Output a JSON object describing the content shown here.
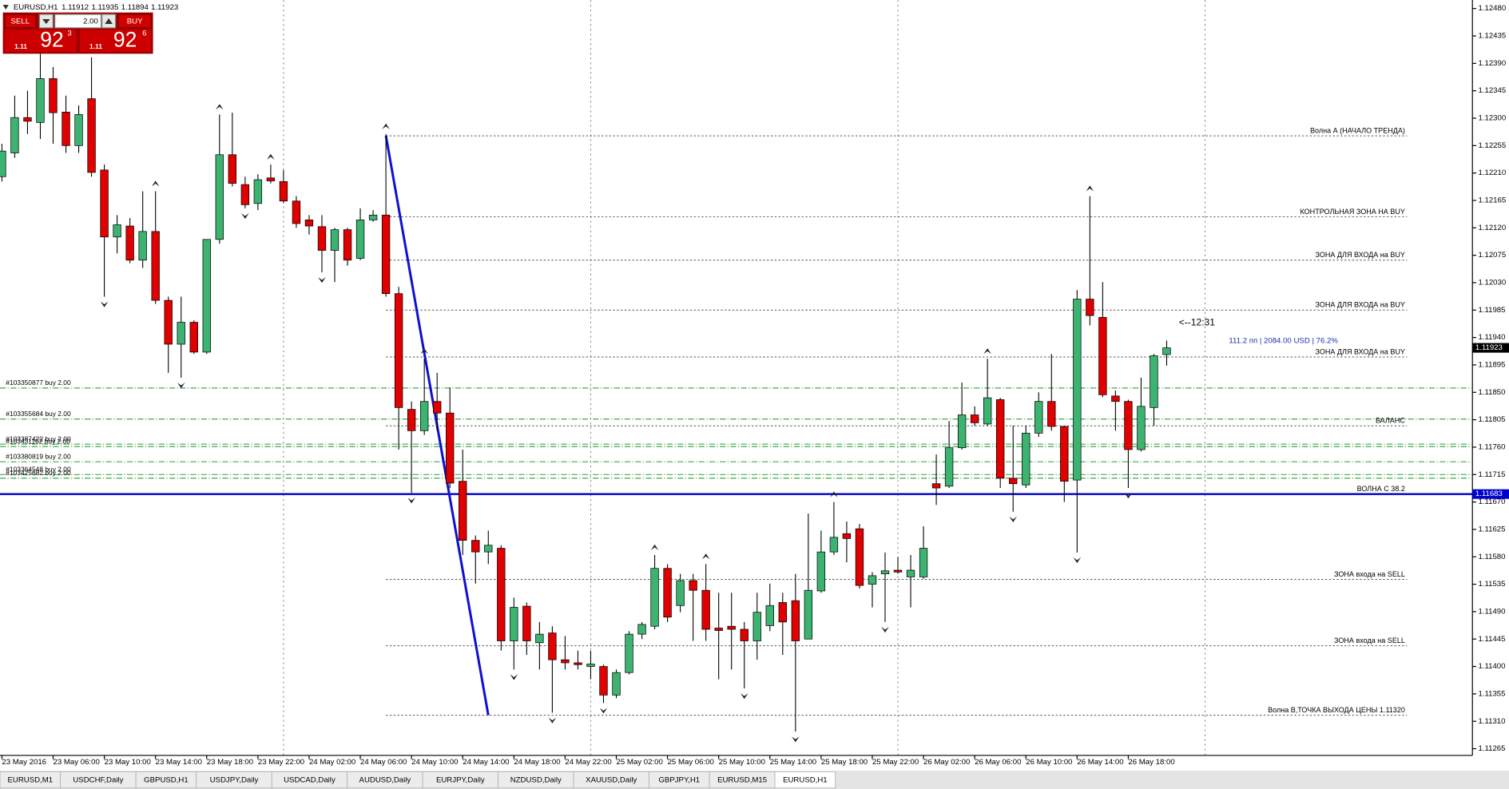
{
  "header": {
    "symbol": "EURUSD,H1"
  },
  "trade_panel": {
    "sell": "SELL",
    "buy": "BUY",
    "lot": "2.00",
    "sell_big": "1.11",
    "sell_pips": "92",
    "sell_point": "3",
    "buy_big": "1.11",
    "buy_pips": "92",
    "buy_point": "6"
  },
  "chart_data": {
    "type": "candlestick",
    "categories": [
      "23 May 2016",
      null,
      null,
      null,
      "23 May 06:00",
      null,
      null,
      null,
      "23 May 10:00",
      null,
      null,
      null,
      "23 May 14:00",
      null,
      null,
      null,
      "23 May 18:00",
      null,
      null,
      null,
      "23 May 22:00",
      null,
      null,
      null,
      "24 May 02:00",
      null,
      null,
      null,
      "24 May 06:00",
      null,
      null,
      null,
      "24 May 10:00",
      null,
      null,
      null,
      "24 May 14:00",
      null,
      null,
      null,
      "24 May 18:00",
      null,
      null,
      null,
      "24 May 22:00",
      null,
      null,
      null,
      "25 May 02:00",
      null,
      null,
      null,
      "25 May 06:00",
      null,
      null,
      null,
      "25 May 10:00",
      null,
      null,
      null,
      "25 May 14:00",
      null,
      null,
      null,
      "25 May 18:00",
      null,
      null,
      null,
      "25 May 22:00",
      null,
      null,
      null,
      "26 May 02:00",
      null,
      null,
      null,
      "26 May 06:00",
      null,
      null,
      null,
      "26 May 10:00",
      null,
      null,
      null,
      "26 May 14:00",
      null,
      null,
      null,
      "26 May 18:00",
      null,
      null,
      null
    ],
    "candles": [
      [
        1.12204,
        1.12258,
        1.12196,
        1.12246
      ],
      [
        1.12243,
        1.12337,
        1.12235,
        1.12301
      ],
      [
        1.12301,
        1.12345,
        1.12274,
        1.12295
      ],
      [
        1.12293,
        1.12408,
        1.12266,
        1.12365
      ],
      [
        1.12365,
        1.12384,
        1.12258,
        1.12309
      ],
      [
        1.1231,
        1.12337,
        1.12243,
        1.12255
      ],
      [
        1.12255,
        1.12321,
        1.12243,
        1.12306
      ],
      [
        1.12332,
        1.124,
        1.12204,
        1.12211
      ],
      [
        1.12215,
        1.12224,
        1.12007,
        1.12105
      ],
      [
        1.12105,
        1.12141,
        1.12078,
        1.12125
      ],
      [
        1.12123,
        1.12136,
        1.12062,
        1.12067
      ],
      [
        1.12067,
        1.1218,
        1.12054,
        1.12114
      ],
      [
        1.12114,
        1.1218,
        1.11995,
        1.12001
      ],
      [
        1.12001,
        1.12007,
        1.11882,
        1.11929
      ],
      [
        1.11929,
        1.12007,
        1.11874,
        1.11965
      ],
      [
        1.11965,
        1.11968,
        1.11913,
        1.11916
      ],
      [
        1.11916,
        1.12101,
        1.11913,
        1.12101
      ],
      [
        1.12101,
        1.12306,
        1.12094,
        1.1224
      ],
      [
        1.1224,
        1.12309,
        1.12188,
        1.12193
      ],
      [
        1.12191,
        1.12204,
        1.12152,
        1.12158
      ],
      [
        1.1216,
        1.12208,
        1.12149,
        1.12199
      ],
      [
        1.12202,
        1.12224,
        1.12193,
        1.12197
      ],
      [
        1.12196,
        1.12215,
        1.12161,
        1.12164
      ],
      [
        1.12164,
        1.12172,
        1.1212,
        1.12127
      ],
      [
        1.12133,
        1.12141,
        1.12109,
        1.12123
      ],
      [
        1.12122,
        1.12141,
        1.12047,
        1.12083
      ],
      [
        1.12083,
        1.1212,
        1.12031,
        1.12117
      ],
      [
        1.12117,
        1.1212,
        1.12058,
        1.12067
      ],
      [
        1.1207,
        1.12152,
        1.12067,
        1.12133
      ],
      [
        1.12133,
        1.12149,
        1.1213,
        1.12141
      ],
      [
        1.12141,
        1.12274,
        1.12007,
        1.12012
      ],
      [
        1.12012,
        1.12023,
        1.11756,
        1.11825
      ],
      [
        1.11822,
        1.11835,
        1.11685,
        1.11787
      ],
      [
        1.11787,
        1.11905,
        1.1178,
        1.11835
      ],
      [
        1.11835,
        1.11882,
        1.11787,
        1.11816
      ],
      [
        1.11816,
        1.11858,
        1.11693,
        1.11701
      ],
      [
        1.11704,
        1.11756,
        1.11583,
        1.11607
      ],
      [
        1.11607,
        1.11615,
        1.11536,
        1.11588
      ],
      [
        1.11588,
        1.11623,
        1.11568,
        1.11599
      ],
      [
        1.11594,
        1.11599,
        1.11426,
        1.11442
      ],
      [
        1.11442,
        1.11513,
        1.11395,
        1.11497
      ],
      [
        1.11499,
        1.11505,
        1.11419,
        1.11442
      ],
      [
        1.11439,
        1.11473,
        1.11395,
        1.11453
      ],
      [
        1.11455,
        1.11466,
        1.11324,
        1.11411
      ],
      [
        1.11411,
        1.1145,
        1.11395,
        1.11406
      ],
      [
        1.11406,
        1.11426,
        1.11395,
        1.11403
      ],
      [
        1.114,
        1.11426,
        1.11379,
        1.11404
      ],
      [
        1.114,
        1.11403,
        1.1134,
        1.11353
      ],
      [
        1.11353,
        1.11395,
        1.11348,
        1.1139
      ],
      [
        1.1139,
        1.11458,
        1.11387,
        1.11453
      ],
      [
        1.11453,
        1.11473,
        1.11445,
        1.11469
      ],
      [
        1.11466,
        1.11583,
        1.11461,
        1.11561
      ],
      [
        1.11561,
        1.11568,
        1.11473,
        1.11481
      ],
      [
        1.115,
        1.11552,
        1.11489,
        1.11541
      ],
      [
        1.11541,
        1.11552,
        1.11442,
        1.11525
      ],
      [
        1.11525,
        1.11568,
        1.11442,
        1.11461
      ],
      [
        1.11463,
        1.11521,
        1.11379,
        1.11459
      ],
      [
        1.11466,
        1.11521,
        1.11395,
        1.11461
      ],
      [
        1.11461,
        1.11473,
        1.11364,
        1.11442
      ],
      [
        1.11442,
        1.11521,
        1.11411,
        1.11489
      ],
      [
        1.11467,
        1.11536,
        1.11458,
        1.115
      ],
      [
        1.11505,
        1.11521,
        1.11419,
        1.11473
      ],
      [
        1.11508,
        1.11552,
        1.11293,
        1.11442
      ],
      [
        1.11445,
        1.11651,
        1.11445,
        1.11525
      ],
      [
        1.11524,
        1.11623,
        1.11521,
        1.11588
      ],
      [
        1.11588,
        1.1167,
        1.11583,
        1.11612
      ],
      [
        1.11618,
        1.11638,
        1.11571,
        1.1161
      ],
      [
        1.11626,
        1.11634,
        1.11528,
        1.11533
      ],
      [
        1.11535,
        1.11555,
        1.11497,
        1.11549
      ],
      [
        1.11552,
        1.11587,
        1.11473,
        1.11557
      ],
      [
        1.11558,
        1.1158,
        1.11552,
        1.11555
      ],
      [
        1.11547,
        1.11583,
        1.11497,
        1.11558
      ],
      [
        1.11547,
        1.1163,
        1.11544,
        1.11594
      ],
      [
        1.117,
        1.11748,
        1.11665,
        1.11693
      ],
      [
        1.11696,
        1.11803,
        1.11693,
        1.11759
      ],
      [
        1.11759,
        1.11866,
        1.11756,
        1.11813
      ],
      [
        1.11813,
        1.11827,
        1.11795,
        1.118
      ],
      [
        1.11798,
        1.11905,
        1.11795,
        1.11841
      ],
      [
        1.11838,
        1.11841,
        1.11693,
        1.11709
      ],
      [
        1.11709,
        1.11795,
        1.11654,
        1.117
      ],
      [
        1.11698,
        1.11795,
        1.11693,
        1.11783
      ],
      [
        1.11783,
        1.1185,
        1.11777,
        1.11835
      ],
      [
        1.11835,
        1.11913,
        1.11787,
        1.11794
      ],
      [
        1.11794,
        1.11795,
        1.1167,
        1.11704
      ],
      [
        1.11706,
        1.12018,
        1.11587,
        1.12003
      ],
      [
        1.12003,
        1.12172,
        1.1196,
        1.11976
      ],
      [
        1.11973,
        1.12031,
        1.11842,
        1.11846
      ],
      [
        1.11844,
        1.11853,
        1.11787,
        1.11835
      ],
      [
        1.11835,
        1.11838,
        1.11693,
        1.11756
      ],
      [
        1.11756,
        1.11874,
        1.11753,
        1.11827
      ],
      [
        1.11825,
        1.11913,
        1.11795,
        1.1191
      ],
      [
        1.11912,
        1.11935,
        1.11894,
        1.11923
      ]
    ],
    "up_color": "#3cb371",
    "down_color": "#e00000",
    "ylim": [
      1.11254,
      1.12494
    ],
    "yticks": [
      {
        "value": 1.1248,
        "label": "1.12480"
      },
      1.12435,
      {
        "value": 1.1239,
        "label": "1.12390"
      },
      1.12345,
      {
        "value": 1.123,
        "label": "1.12300"
      },
      1.12255,
      {
        "value": 1.1221,
        "label": "1.12210"
      },
      1.12165,
      {
        "value": 1.1212,
        "label": "1.12120"
      },
      1.12075,
      {
        "value": 1.1203,
        "label": "1.12030"
      },
      1.11985,
      {
        "value": 1.1194,
        "label": "1.11940"
      },
      1.11895,
      {
        "value": 1.1185,
        "label": "1.11850"
      },
      1.11805,
      {
        "value": 1.1176,
        "label": "1.11760"
      },
      1.11715,
      {
        "value": 1.1167,
        "label": "1.11670"
      },
      1.11625,
      {
        "value": 1.1158,
        "label": "1.11580"
      },
      1.11535,
      {
        "value": 1.1149,
        "label": "1.11490"
      },
      1.11445,
      {
        "value": 1.114,
        "label": "1.11400"
      },
      1.11355,
      {
        "value": 1.1131,
        "label": "1.11310"
      },
      1.11265
    ],
    "grid": true,
    "levels": [
      {
        "label": "Волна А (НАЧАЛО ТРЕНДА)",
        "price": 1.12271,
        "style": "dotted"
      },
      {
        "label": "КОНТРОЛЬНАЯ ЗОНА НА BUY",
        "price": 1.12138,
        "style": "dotted"
      },
      {
        "label": "ЗОНА ДЛЯ ВХОДА на BUY",
        "price": 1.12067,
        "style": "dotted"
      },
      {
        "label": "ЗОНА ДЛЯ ВХОДА на BUY",
        "price": 1.11985,
        "style": "dotted"
      },
      {
        "label": "ЗОНА ДЛЯ ВХОДА на BUY",
        "price": 1.11908,
        "style": "dotted"
      },
      {
        "label": "БАЛАНС",
        "price": 1.11795,
        "style": "dotted"
      },
      {
        "label": "ВОЛНА С 38.2",
        "price": 1.11683,
        "style": "solid",
        "color": "#0000cc"
      },
      {
        "label": "ЗОНА входа на SELL",
        "price": 1.11543,
        "style": "dotted"
      },
      {
        "label": "ЗОНА входа на SELL",
        "price": 1.11434,
        "style": "dotted"
      },
      {
        "label": "Волна В,ТОЧКА ВЫХОДА ЦЕНЫ 1.11320",
        "price": 1.1132,
        "style": "dotted"
      }
    ],
    "orders": [
      {
        "label": "#103350877 buy 2.00",
        "price": 1.11857
      },
      {
        "label": "#103355684 buy 2.00",
        "price": 1.11806
      },
      {
        "label": "#103387422 buy 2.00",
        "price": 1.11765
      },
      {
        "label": "#103431162 buy 2.00",
        "price": 1.11761
      },
      {
        "label": "#103380819 buy 2.00",
        "price": 1.11736
      },
      {
        "label": "#103364548 buy 2.00",
        "price": 1.11715
      },
      {
        "label": "#103425682 buy 2.00",
        "price": 1.11709
      }
    ],
    "order_color": "#2e9c3a",
    "annotations": [
      "<--12:31",
      "111.2 пп | 2084.00 USD | 76.2%"
    ]
  },
  "tabs": [
    "EURUSD,M1",
    "USDCHF,Daily",
    "GBPUSD,H1",
    "USDJPY,Daily",
    "USDCAD,Daily",
    "AUDUSD,Daily",
    "EURJPY,Daily",
    "NZDUSD,Daily",
    "XAUUSD,Daily",
    "GBPJPY,H1",
    "EURUSD,M15",
    "EURUSD,H1"
  ]
}
